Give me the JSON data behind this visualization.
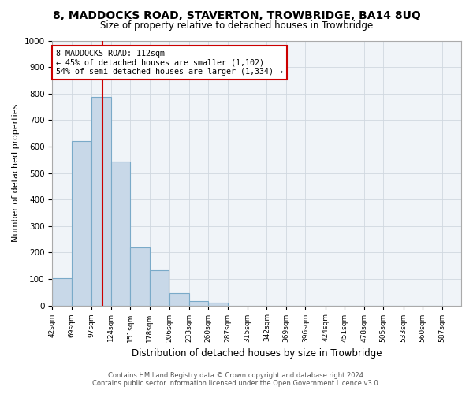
{
  "title": "8, MADDOCKS ROAD, STAVERTON, TROWBRIDGE, BA14 8UQ",
  "subtitle": "Size of property relative to detached houses in Trowbridge",
  "xlabel": "Distribution of detached houses by size in Trowbridge",
  "ylabel": "Number of detached properties",
  "bin_labels": [
    "42sqm",
    "69sqm",
    "97sqm",
    "124sqm",
    "151sqm",
    "178sqm",
    "206sqm",
    "233sqm",
    "260sqm",
    "287sqm",
    "315sqm",
    "342sqm",
    "369sqm",
    "396sqm",
    "424sqm",
    "451sqm",
    "478sqm",
    "505sqm",
    "533sqm",
    "560sqm",
    "587sqm"
  ],
  "bar_values": [
    103,
    622,
    787,
    543,
    220,
    133,
    45,
    17,
    10,
    0,
    0,
    0,
    0,
    0,
    0,
    0,
    0,
    0,
    0,
    0
  ],
  "bar_color": "#c8d8e8",
  "bar_edge_color": "#7aaac8",
  "property_line_x": 112,
  "bin_edges": [
    42,
    69,
    97,
    124,
    151,
    178,
    206,
    233,
    260,
    287,
    315,
    342,
    369,
    396,
    424,
    451,
    478,
    505,
    533,
    560,
    587
  ],
  "annotation_title": "8 MADDOCKS ROAD: 112sqm",
  "annotation_line1": "← 45% of detached houses are smaller (1,102)",
  "annotation_line2": "54% of semi-detached houses are larger (1,334) →",
  "annotation_box_color": "#ffffff",
  "annotation_box_edge": "#cc0000",
  "vline_color": "#cc0000",
  "ylim": [
    0,
    1000
  ],
  "yticks": [
    0,
    100,
    200,
    300,
    400,
    500,
    600,
    700,
    800,
    900,
    1000
  ],
  "footer1": "Contains HM Land Registry data © Crown copyright and database right 2024.",
  "footer2": "Contains public sector information licensed under the Open Government Licence v3.0.",
  "bg_color": "#ffffff",
  "plot_bg_color": "#f0f4f8",
  "grid_color": "#d0d8e0"
}
